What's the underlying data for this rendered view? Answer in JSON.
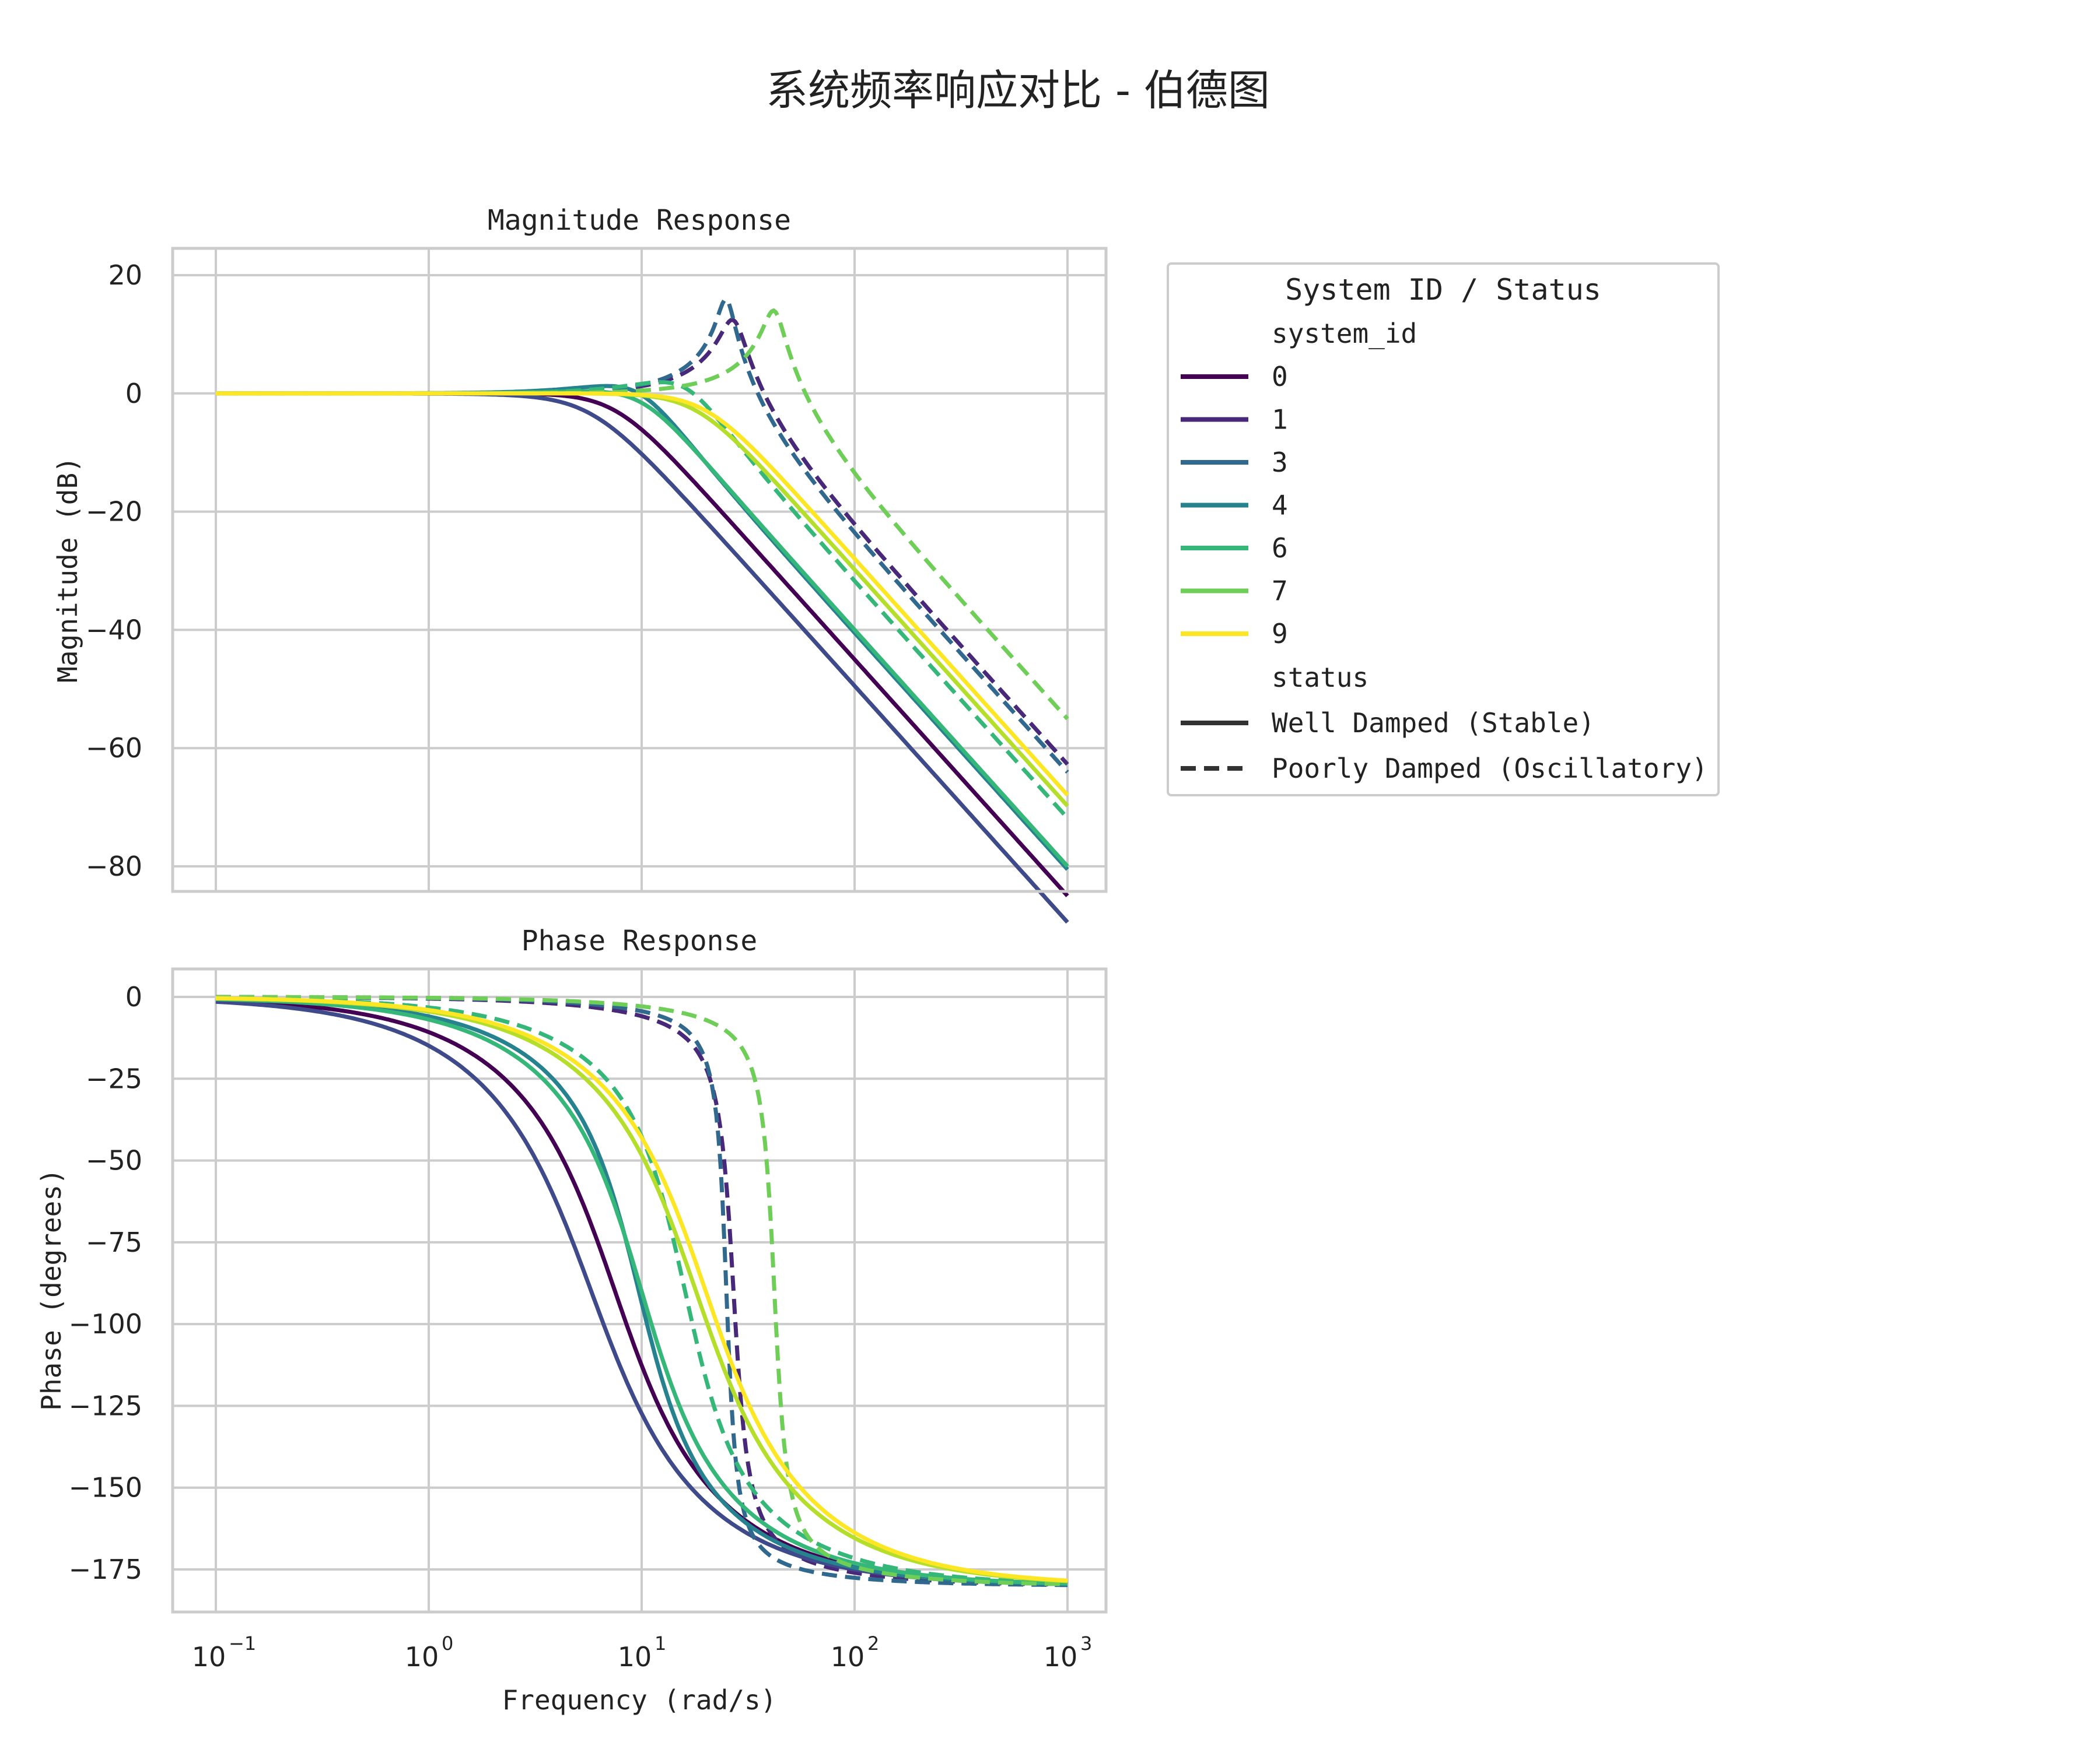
{
  "figure": {
    "title": "系统频率响应对比 - 伯德图"
  },
  "chart_data": [
    {
      "type": "line",
      "title": "Magnitude Response",
      "xlabel": "",
      "ylabel": "Magnitude (dB)",
      "xscale": "log",
      "xlim": [
        0.1,
        1000
      ],
      "ylim": [
        -84.5,
        21
      ],
      "yticks": [
        20,
        0,
        -20,
        -40,
        -60,
        -80
      ],
      "ytick_labels": [
        "20",
        "0",
        "−20",
        "−40",
        "−60",
        "−80"
      ],
      "grid": true,
      "note_values_estimated": true,
      "series": [
        {
          "name": "0",
          "status": "Well Damped (Stable)",
          "color": "#440154",
          "dash": false,
          "wn": 7.5,
          "zeta": 0.7
        },
        {
          "name": "1",
          "status": "Poorly Damped (Oscillatory)",
          "color": "#482878",
          "dash": true,
          "wn": 27.0,
          "zeta": 0.12
        },
        {
          "name": "3",
          "status": "Well Damped (Stable)",
          "color": "#3e4a89",
          "dash": false,
          "wn": 5.8,
          "zeta": 0.75
        },
        {
          "name": "3",
          "status": "Poorly Damped (Oscillatory)",
          "color": "#31688e",
          "dash": true,
          "wn": 25.0,
          "zeta": 0.08
        },
        {
          "name": "4",
          "status": "Well Damped (Stable)",
          "color": "#26828e",
          "dash": false,
          "wn": 9.7,
          "zeta": 0.5
        },
        {
          "name": "6",
          "status": "Well Damped (Stable)",
          "color": "#35b779",
          "dash": false,
          "wn": 10.0,
          "zeta": 0.6
        },
        {
          "name": "6",
          "status": "Poorly Damped (Oscillatory)",
          "color": "#35b779",
          "dash": true,
          "wn": 16.0,
          "zeta": 0.45
        },
        {
          "name": "7",
          "status": "Poorly Damped (Oscillatory)",
          "color": "#6ece58",
          "dash": true,
          "wn": 42.0,
          "zeta": 0.1
        },
        {
          "name": "7",
          "status": "Well Damped (Stable)",
          "color": "#b5de2b",
          "dash": false,
          "wn": 18.0,
          "zeta": 0.7
        },
        {
          "name": "9",
          "status": "Well Damped (Stable)",
          "color": "#fde725",
          "dash": false,
          "wn": 20.0,
          "zeta": 0.7
        }
      ]
    },
    {
      "type": "line",
      "title": "Phase Response",
      "xlabel": "Frequency (rad/s)",
      "ylabel": "Phase (degrees)",
      "xscale": "log",
      "xlim": [
        0.1,
        1000
      ],
      "ylim": [
        -189,
        9
      ],
      "xticks": [
        0.1,
        1,
        10,
        100,
        1000
      ],
      "xtick_labels": [
        {
          "base": "10",
          "exp": "−1"
        },
        {
          "base": "10",
          "exp": "0"
        },
        {
          "base": "10",
          "exp": "1"
        },
        {
          "base": "10",
          "exp": "2"
        },
        {
          "base": "10",
          "exp": "3"
        }
      ],
      "yticks": [
        0,
        -25,
        -50,
        -75,
        -100,
        -125,
        -150,
        -175
      ],
      "ytick_labels": [
        "0",
        "−25",
        "−50",
        "−75",
        "−100",
        "−125",
        "−150",
        "−175"
      ],
      "grid": true
    }
  ],
  "legend": {
    "title": "System ID / Status",
    "placement": "outside-right",
    "subtitle_id": "system_id",
    "ids": [
      {
        "label": "0",
        "color": "#440154"
      },
      {
        "label": "1",
        "color": "#482878"
      },
      {
        "label": "3",
        "color": "#31688e"
      },
      {
        "label": "4",
        "color": "#26828e"
      },
      {
        "label": "6",
        "color": "#35b779"
      },
      {
        "label": "7",
        "color": "#6ece58"
      },
      {
        "label": "9",
        "color": "#fde725"
      }
    ],
    "subtitle_status": "status",
    "statuses": [
      {
        "label": "Well Damped (Stable)",
        "dash": false
      },
      {
        "label": "Poorly Damped (Oscillatory)",
        "dash": true
      }
    ]
  }
}
